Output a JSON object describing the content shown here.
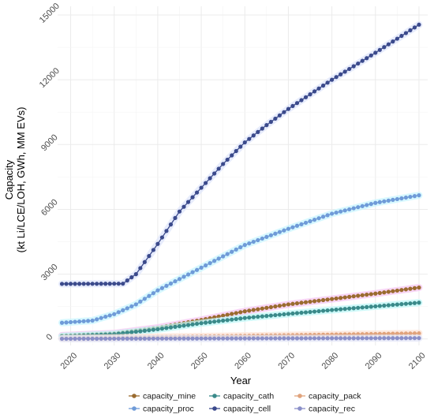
{
  "chart_data": {
    "type": "line",
    "title": "",
    "xlabel": "Year",
    "ylabel_lines": [
      "Capacity",
      "(kt Li/LCE/LOH, GWh, MM EVs)"
    ],
    "xlim": [
      2017,
      2102
    ],
    "ylim": [
      -300,
      15400
    ],
    "xticks": [
      2020,
      2030,
      2040,
      2050,
      2060,
      2070,
      2080,
      2090,
      2100
    ],
    "yticks": [
      0,
      3000,
      6000,
      9000,
      12000,
      15000
    ],
    "grid": true,
    "legend_position": "bottom",
    "x_start": 2018,
    "x_end": 2100,
    "series": [
      {
        "name": "capacity_mine",
        "color": "#9a6b2f",
        "halo": "#f6c7f1",
        "knots": [
          [
            2018,
            160
          ],
          [
            2030,
            260
          ],
          [
            2040,
            520
          ],
          [
            2050,
            880
          ],
          [
            2060,
            1280
          ],
          [
            2070,
            1600
          ],
          [
            2080,
            1850
          ],
          [
            2090,
            2100
          ],
          [
            2100,
            2380
          ]
        ]
      },
      {
        "name": "capacity_cath",
        "color": "#3a8a8a",
        "halo": "#bff7f7",
        "knots": [
          [
            2018,
            120
          ],
          [
            2030,
            220
          ],
          [
            2040,
            450
          ],
          [
            2050,
            730
          ],
          [
            2060,
            970
          ],
          [
            2070,
            1160
          ],
          [
            2080,
            1340
          ],
          [
            2090,
            1510
          ],
          [
            2100,
            1680
          ]
        ]
      },
      {
        "name": "capacity_pack",
        "color": "#e0a37c",
        "halo": "#fde3d6",
        "knots": [
          [
            2018,
            25
          ],
          [
            2100,
            260
          ]
        ]
      },
      {
        "name": "capacity_proc",
        "color": "#6f9bd8",
        "halo": "#c9f5ff",
        "knots": [
          [
            2018,
            750
          ],
          [
            2025,
            850
          ],
          [
            2030,
            1150
          ],
          [
            2035,
            1600
          ],
          [
            2040,
            2250
          ],
          [
            2050,
            3300
          ],
          [
            2060,
            4350
          ],
          [
            2070,
            5100
          ],
          [
            2080,
            5800
          ],
          [
            2090,
            6300
          ],
          [
            2100,
            6650
          ]
        ]
      },
      {
        "name": "capacity_cell",
        "color": "#3b4a8c",
        "halo": "#dfe5fb",
        "knots": [
          [
            2018,
            2550
          ],
          [
            2032,
            2560
          ],
          [
            2035,
            3000
          ],
          [
            2040,
            4400
          ],
          [
            2045,
            5900
          ],
          [
            2050,
            7000
          ],
          [
            2055,
            8100
          ],
          [
            2060,
            9100
          ],
          [
            2065,
            9900
          ],
          [
            2070,
            10650
          ],
          [
            2080,
            12000
          ],
          [
            2090,
            13250
          ],
          [
            2100,
            14550
          ]
        ]
      },
      {
        "name": "capacity_rec",
        "color": "#8a8fc8",
        "halo": "#e3e6f7",
        "knots": [
          [
            2018,
            8
          ],
          [
            2100,
            40
          ]
        ]
      }
    ]
  }
}
